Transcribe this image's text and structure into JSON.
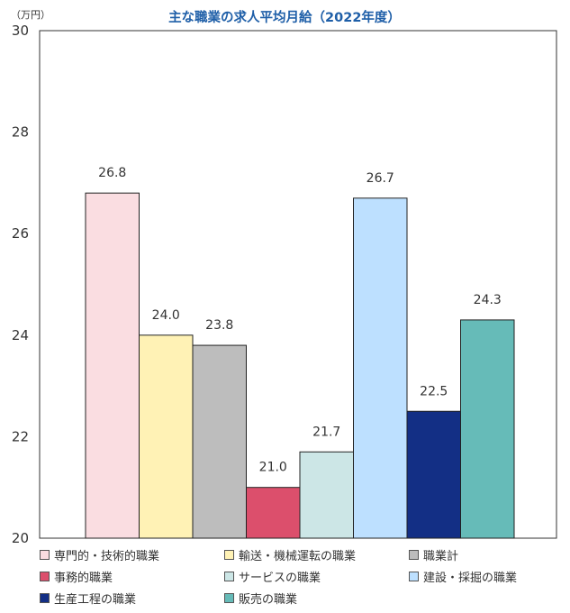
{
  "chart_data": {
    "type": "bar",
    "title": "主な職業の求人平均月給（2022年度）",
    "unit_label": "（万円）",
    "ylim": [
      20,
      30
    ],
    "yticks": [
      "20",
      "22",
      "24",
      "26",
      "28",
      "30"
    ],
    "grid": false,
    "legend_position": "bottom",
    "series": [
      {
        "name": "専門的・技術的職業",
        "value": 26.8,
        "label": "26.8",
        "color": "#fadde1"
      },
      {
        "name": "輸送・機械運転の職業",
        "value": 24.0,
        "label": "24.0",
        "color": "#fff2b5"
      },
      {
        "name": "職業計",
        "value": 23.8,
        "label": "23.8",
        "color": "#bdbdbd"
      },
      {
        "name": "事務的職業",
        "value": 21.0,
        "label": "21.0",
        "color": "#dc4f6c"
      },
      {
        "name": "サービスの職業",
        "value": 21.7,
        "label": "21.7",
        "color": "#cce6e6"
      },
      {
        "name": "建設・採掘の職業",
        "value": 26.7,
        "label": "26.7",
        "color": "#bde0ff"
      },
      {
        "name": "生産工程の職業",
        "value": 22.5,
        "label": "22.5",
        "color": "#132f85"
      },
      {
        "name": "販売の職業",
        "value": 24.3,
        "label": "24.3",
        "color": "#66bbb8"
      }
    ],
    "legend_order": [
      0,
      1,
      2,
      3,
      4,
      5,
      6,
      7
    ]
  }
}
